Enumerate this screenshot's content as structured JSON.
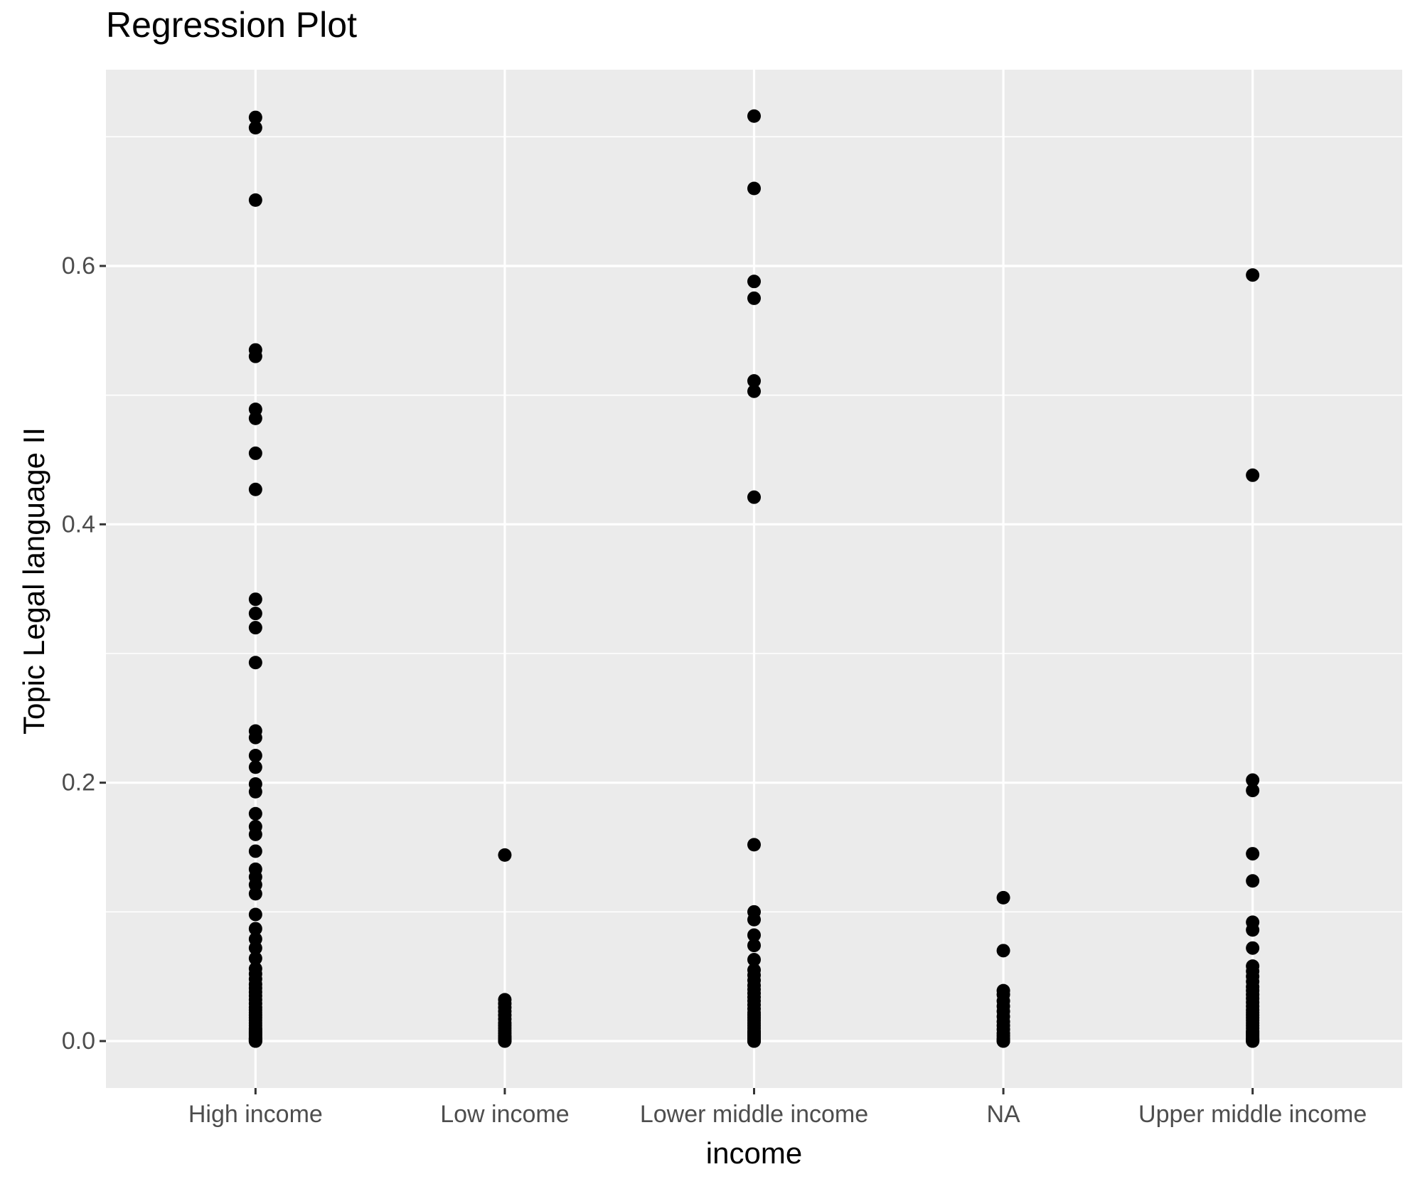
{
  "title": "Regression Plot",
  "chart_data": {
    "type": "scatter",
    "title": "Regression Plot",
    "xlabel": "income",
    "ylabel": "Topic Legal language II",
    "categories": [
      "High income",
      "Low income",
      "Lower middle income",
      "NA",
      "Upper middle income"
    ],
    "y_tick_labels": [
      "0.0",
      "0.2",
      "0.4",
      "0.6"
    ],
    "y_tick_values": [
      0.0,
      0.2,
      0.4,
      0.6
    ],
    "y_minor_values": [
      0.1,
      0.3,
      0.5,
      0.7
    ],
    "ylim": [
      -0.036,
      0.752
    ],
    "grid": "white major and minor horizontal lines, white major vertical lines on gray panel",
    "legend": "none",
    "point_style": "solid black circles, no jitter",
    "colors": {
      "background": "#FFFFFF",
      "panel_bg": "#EBEBEB",
      "grid": "#FFFFFF",
      "point": "#000000",
      "tick_text": "#4D4D4D",
      "tick_mark": "#333333",
      "title_text": "#000000"
    },
    "series": [
      {
        "name": "High income",
        "values": [
          0.715,
          0.707,
          0.651,
          0.535,
          0.53,
          0.489,
          0.482,
          0.455,
          0.427,
          0.342,
          0.331,
          0.32,
          0.293,
          0.24,
          0.235,
          0.221,
          0.212,
          0.199,
          0.193,
          0.176,
          0.166,
          0.16,
          0.147,
          0.133,
          0.127,
          0.121,
          0.114,
          0.098,
          0.087,
          0.079,
          0.072,
          0.064,
          0.056,
          0.052,
          0.048,
          0.044,
          0.041,
          0.038,
          0.035,
          0.032,
          0.029,
          0.026,
          0.024,
          0.022,
          0.02,
          0.018,
          0.016,
          0.014,
          0.012,
          0.01,
          0.009,
          0.008,
          0.007,
          0.006,
          0.005,
          0.004,
          0.003,
          0.002,
          0.002,
          0.001,
          0.001,
          0.0,
          0.0,
          0.0
        ]
      },
      {
        "name": "Low income",
        "values": [
          0.144,
          0.032,
          0.029,
          0.026,
          0.023,
          0.02,
          0.017,
          0.014,
          0.012,
          0.01,
          0.008,
          0.006,
          0.004,
          0.003,
          0.002,
          0.001,
          0.0,
          0.0
        ]
      },
      {
        "name": "Lower middle income",
        "values": [
          0.716,
          0.66,
          0.588,
          0.575,
          0.511,
          0.503,
          0.421,
          0.152,
          0.1,
          0.094,
          0.082,
          0.074,
          0.063,
          0.055,
          0.051,
          0.047,
          0.043,
          0.04,
          0.037,
          0.034,
          0.031,
          0.028,
          0.025,
          0.022,
          0.02,
          0.018,
          0.016,
          0.014,
          0.012,
          0.01,
          0.008,
          0.007,
          0.006,
          0.005,
          0.004,
          0.003,
          0.002,
          0.001,
          0.001,
          0.0,
          0.0,
          0.0
        ]
      },
      {
        "name": "NA",
        "values": [
          0.111,
          0.07,
          0.039,
          0.036,
          0.031,
          0.027,
          0.023,
          0.019,
          0.015,
          0.012,
          0.009,
          0.006,
          0.004,
          0.002,
          0.001,
          0.0,
          0.0
        ]
      },
      {
        "name": "Upper middle income",
        "values": [
          0.593,
          0.438,
          0.202,
          0.194,
          0.145,
          0.124,
          0.092,
          0.086,
          0.072,
          0.058,
          0.054,
          0.05,
          0.046,
          0.042,
          0.039,
          0.036,
          0.033,
          0.03,
          0.027,
          0.024,
          0.022,
          0.02,
          0.018,
          0.016,
          0.014,
          0.012,
          0.01,
          0.008,
          0.007,
          0.006,
          0.005,
          0.004,
          0.003,
          0.002,
          0.001,
          0.001,
          0.0,
          0.0,
          0.0
        ]
      }
    ]
  }
}
